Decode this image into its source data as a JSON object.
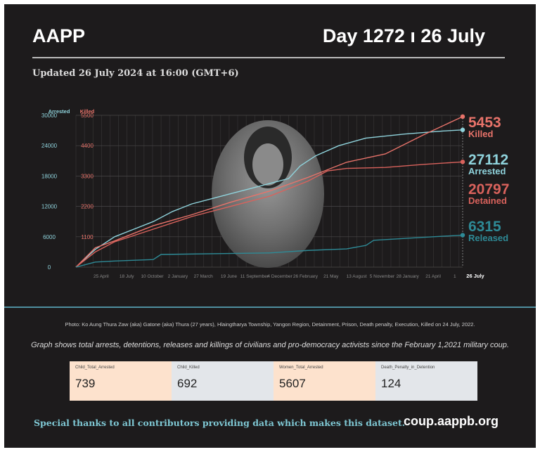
{
  "header": {
    "brand": "AAPP",
    "day": "Day 1272 ı 26 July",
    "updated": "Updated 26 July 2024 at 16:00 (GMT+6)"
  },
  "chart_data": {
    "type": "line",
    "axis_left_label": "Arrested",
    "axis_right_label": "Killed",
    "left_ticks": [
      "0",
      "6000",
      "12000",
      "18000",
      "24000",
      "30000"
    ],
    "right_ticks": [
      "1100",
      "2200",
      "3300",
      "4400",
      "5500"
    ],
    "left_ylim": [
      0,
      30000
    ],
    "right_ylim": [
      0,
      5500
    ],
    "x_total_days": 1272,
    "x_ticks": [
      {
        "d": 83,
        "label": "25 April"
      },
      {
        "d": 167,
        "label": "18 July"
      },
      {
        "d": 251,
        "label": "10 October"
      },
      {
        "d": 335,
        "label": "2 January"
      },
      {
        "d": 419,
        "label": "27 March"
      },
      {
        "d": 503,
        "label": "19 June"
      },
      {
        "d": 587,
        "label": "11 September"
      },
      {
        "d": 671,
        "label": "4 December"
      },
      {
        "d": 755,
        "label": "26 February"
      },
      {
        "d": 839,
        "label": "21 May"
      },
      {
        "d": 923,
        "label": "13 August"
      },
      {
        "d": 1007,
        "label": "5 November"
      },
      {
        "d": 1091,
        "label": "28 January"
      },
      {
        "d": 1175,
        "label": "21 April"
      },
      {
        "d": 1246,
        "label": "1"
      },
      {
        "d": 1272,
        "label": "26 July"
      }
    ],
    "series": [
      {
        "name": "Arrested",
        "label": "Arrested",
        "final": "27112",
        "color": "#8fd3dc",
        "axis": "left",
        "t": [
          0,
          0.05,
          0.1,
          0.15,
          0.2,
          0.25,
          0.3,
          0.35,
          0.4,
          0.45,
          0.5,
          0.55,
          0.58,
          0.62,
          0.68,
          0.75,
          0.85,
          0.95,
          1
        ],
        "v": [
          0,
          3500,
          6000,
          7500,
          9000,
          11000,
          12500,
          13500,
          14500,
          15500,
          16500,
          17500,
          20000,
          22000,
          24000,
          25500,
          26300,
          26900,
          27112
        ]
      },
      {
        "name": "Killed",
        "label": "Killed",
        "final": "5453",
        "color": "#e8736a",
        "axis": "right",
        "t": [
          0,
          0.05,
          0.1,
          0.2,
          0.3,
          0.4,
          0.5,
          0.6,
          0.7,
          0.8,
          0.9,
          1
        ],
        "v": [
          0,
          700,
          950,
          1500,
          1900,
          2350,
          2750,
          3250,
          3800,
          4100,
          4800,
          5453
        ]
      },
      {
        "name": "Detained",
        "label": "Detained",
        "final": "20797",
        "color": "#d9625c",
        "axis": "left",
        "t": [
          0,
          0.05,
          0.1,
          0.2,
          0.3,
          0.4,
          0.5,
          0.55,
          0.6,
          0.65,
          0.7,
          0.8,
          0.9,
          1
        ],
        "v": [
          0,
          3000,
          5000,
          7500,
          10000,
          12000,
          14000,
          15500,
          17000,
          19000,
          19500,
          19700,
          20300,
          20797
        ]
      },
      {
        "name": "Released",
        "label": "Released",
        "final": "6315",
        "color": "#2e8a96",
        "axis": "left",
        "t": [
          0,
          0.05,
          0.1,
          0.2,
          0.22,
          0.4,
          0.5,
          0.6,
          0.7,
          0.75,
          0.77,
          0.9,
          1
        ],
        "v": [
          0,
          1000,
          1200,
          1500,
          2500,
          2700,
          2800,
          3300,
          3600,
          4300,
          5300,
          5900,
          6315
        ]
      }
    ]
  },
  "footer": {
    "photo_caption": "Photo: Ko Aung Thura Zaw (aka) Gatone (aka) Thura (27 years), Hlaingtharya Township, Yangon Region, Detainment, Prison, Death penalty, Execution, Killed on 24 July, 2022.",
    "description": "Graph shows total arrests, detentions, releases and killings of civilians and pro-democracy activists since the February 1,2021 military coup.",
    "cards": [
      {
        "label": "Child_Total_Arrested",
        "value": "739"
      },
      {
        "label": "Child_Killed",
        "value": "692"
      },
      {
        "label": "Women_Total_Arrested",
        "value": "5607"
      },
      {
        "label": "Death_Penalty_in_Detention",
        "value": "124"
      }
    ],
    "thanks": "Special thanks to all contributors providing data which makes this dataset.",
    "site": "coup.aappb.org"
  }
}
